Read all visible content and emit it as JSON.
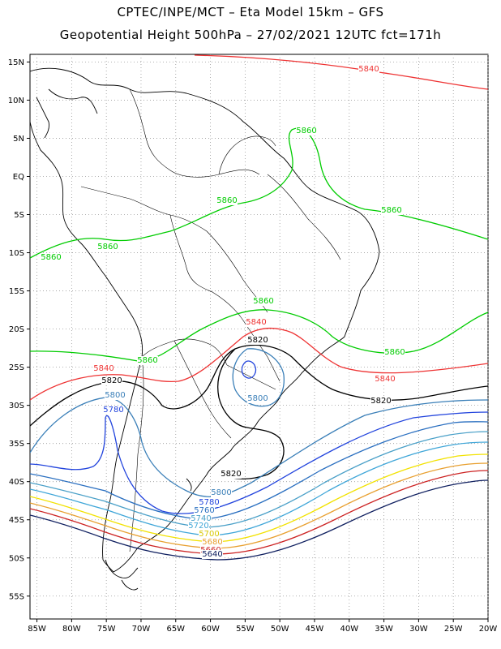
{
  "header": {
    "title_line1": "CPTEC/INPE/MCT –  Eta Model 15km – GFS",
    "title_line2": "Geopotential Height 500hPa – 27/02/2021 12UTC fct=171h"
  },
  "map": {
    "projection": "lat-lon",
    "lon_range": [
      -86,
      -20
    ],
    "lat_range": [
      -58,
      16
    ],
    "grid": "dotted",
    "lat_labels": [
      "15N",
      "10N",
      "5N",
      "EQ",
      "5S",
      "10S",
      "15S",
      "20S",
      "25S",
      "30S",
      "35S",
      "40S",
      "45S",
      "50S",
      "55S"
    ],
    "lon_labels": [
      "85W",
      "80W",
      "75W",
      "70W",
      "65W",
      "60W",
      "55W",
      "50W",
      "45W",
      "40W",
      "35W",
      "30W",
      "25W",
      "20W"
    ],
    "contour_unit": "gpm"
  },
  "contours": [
    {
      "value": "5860",
      "color": "#00cc00"
    },
    {
      "value": "5840",
      "color": "#ee3333"
    },
    {
      "value": "5820",
      "color": "#000000"
    },
    {
      "value": "5800",
      "color": "#3a7fb8"
    },
    {
      "value": "5780",
      "color": "#2244dd"
    },
    {
      "value": "5760",
      "color": "#2a6fc0"
    },
    {
      "value": "5740",
      "color": "#4aa0c8"
    },
    {
      "value": "5720",
      "color": "#3fa6d8"
    },
    {
      "value": "5700",
      "color": "#f2e200"
    },
    {
      "value": "5680",
      "color": "#e8a030"
    },
    {
      "value": "5660",
      "color": "#cc2222"
    },
    {
      "value": "5640",
      "color": "#102060"
    }
  ],
  "labels": [
    {
      "text": "5840",
      "color": "#ee3333"
    },
    {
      "text": "5860",
      "color": "#00cc00"
    },
    {
      "text": "5860",
      "color": "#00cc00"
    },
    {
      "text": "5860",
      "color": "#00cc00"
    },
    {
      "text": "5860",
      "color": "#00cc00"
    },
    {
      "text": "5860",
      "color": "#00cc00"
    },
    {
      "text": "5860",
      "color": "#00cc00"
    },
    {
      "text": "5860",
      "color": "#00cc00"
    },
    {
      "text": "5860",
      "color": "#00cc00"
    },
    {
      "text": "5840",
      "color": "#ee3333"
    },
    {
      "text": "5820",
      "color": "#000000"
    },
    {
      "text": "5840",
      "color": "#ee3333"
    },
    {
      "text": "5820",
      "color": "#000000"
    },
    {
      "text": "5840",
      "color": "#ee3333"
    },
    {
      "text": "5820",
      "color": "#000000"
    },
    {
      "text": "5800",
      "color": "#3a7fb8"
    },
    {
      "text": "5800",
      "color": "#3a7fb8"
    },
    {
      "text": "5780",
      "color": "#2244dd"
    },
    {
      "text": "5820",
      "color": "#000000"
    },
    {
      "text": "5800",
      "color": "#3a7fb8"
    },
    {
      "text": "5780",
      "color": "#2244dd"
    },
    {
      "text": "5760",
      "color": "#2a6fc0"
    },
    {
      "text": "5740",
      "color": "#4aa0c8"
    },
    {
      "text": "5720",
      "color": "#3fa6d8"
    },
    {
      "text": "5700",
      "color": "#d8c800"
    },
    {
      "text": "5680",
      "color": "#e8a030"
    },
    {
      "text": "5660",
      "color": "#cc2222"
    },
    {
      "text": "5640",
      "color": "#102060"
    }
  ]
}
